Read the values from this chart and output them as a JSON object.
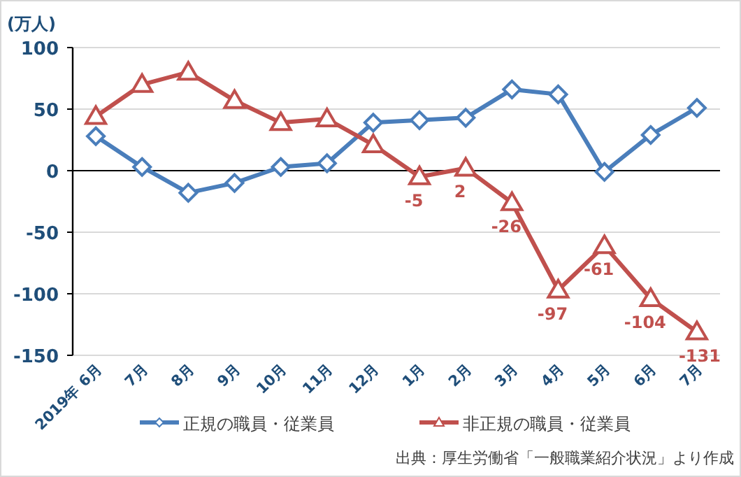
{
  "chart_data": {
    "type": "line",
    "ylabel": "(万人)",
    "categories": [
      "2019年 6月",
      "7月",
      "8月",
      "9月",
      "10月",
      "11月",
      "12月",
      "1月",
      "2月",
      "3月",
      "4月",
      "5月",
      "6月",
      "7月"
    ],
    "series": [
      {
        "name": "正規の職員・従業員",
        "color": "#4a7ebb",
        "marker": "diamond",
        "values": [
          28,
          3,
          -18,
          -10,
          3,
          6,
          39,
          41,
          43,
          66,
          62,
          -1,
          29,
          51
        ]
      },
      {
        "name": "非正規の職員・従業員",
        "color": "#c0504d",
        "marker": "triangle",
        "values": [
          44,
          70,
          80,
          57,
          39,
          42,
          21,
          -5,
          2,
          -26,
          -97,
          -61,
          -104,
          -131
        ],
        "value_labels": [
          null,
          null,
          null,
          null,
          null,
          null,
          null,
          "-5",
          "2",
          "-26",
          "-97",
          "-61",
          "-104",
          "-131"
        ]
      }
    ],
    "ylim": [
      -150,
      100
    ],
    "yticks": [
      -150,
      -100,
      -50,
      0,
      50,
      100
    ],
    "grid": "y",
    "legend": "bottom",
    "annotations": [
      "出典：厚生労働省「一般職業紹介状況」より作成"
    ]
  }
}
